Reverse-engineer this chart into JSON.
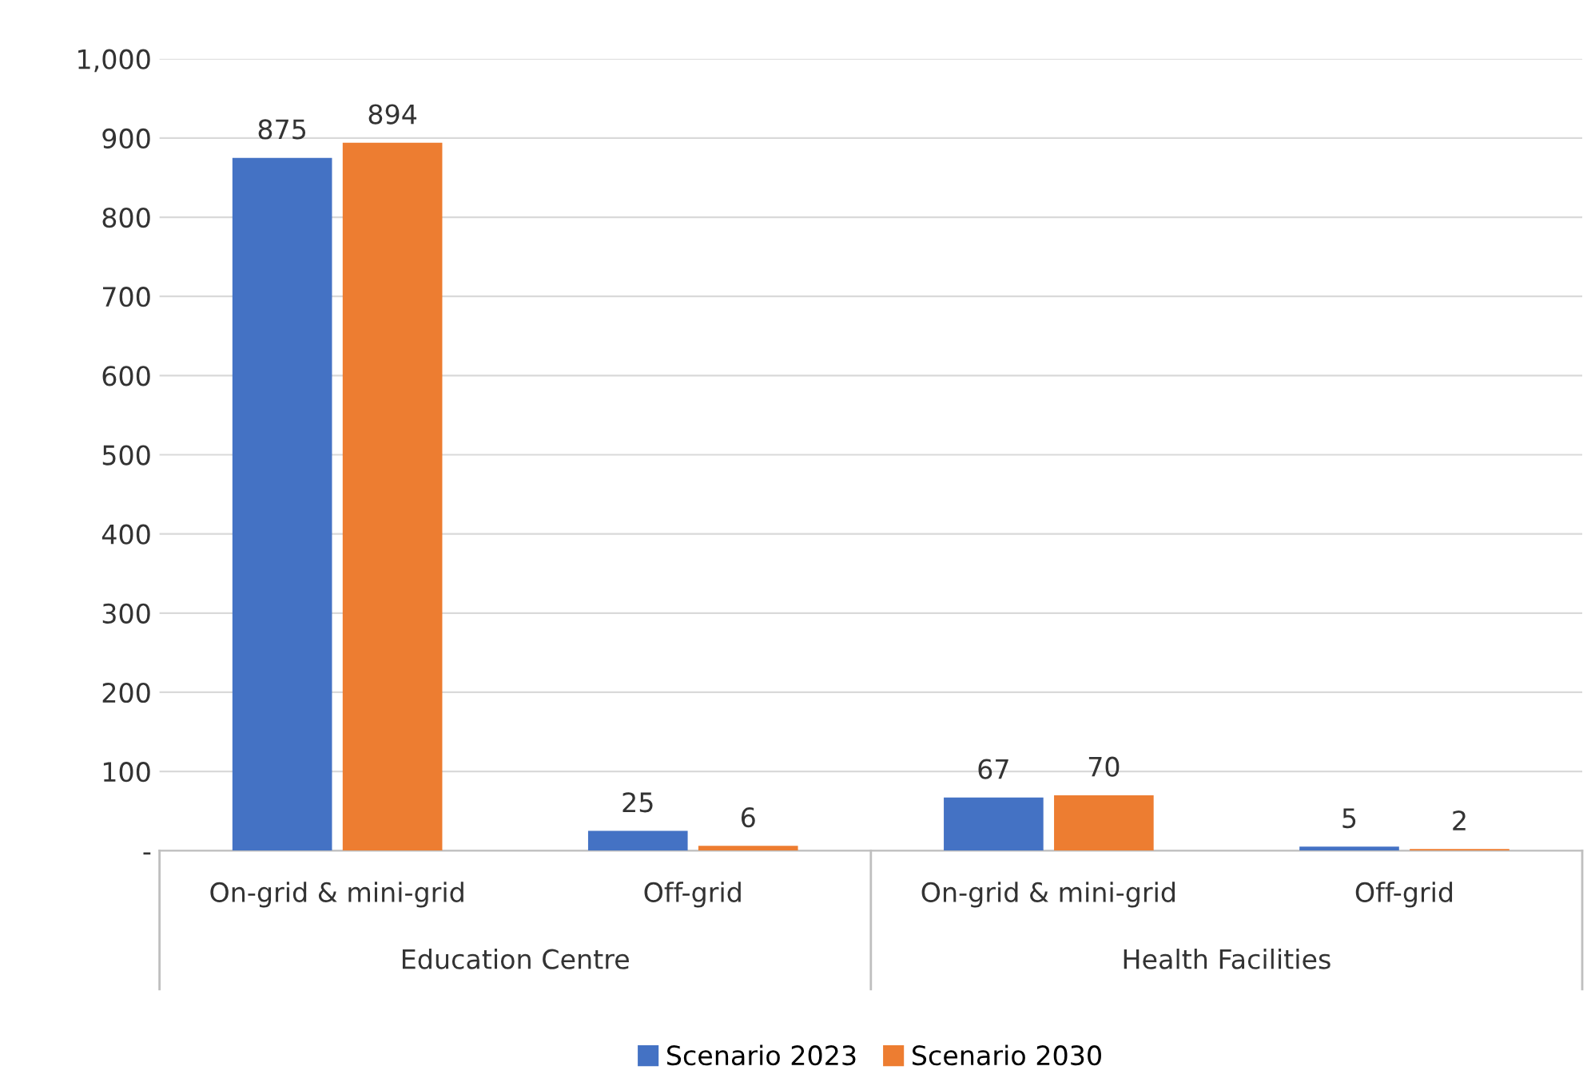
{
  "chart_data": {
    "type": "bar",
    "categories": [
      "On-grid & mini-grid",
      "Off-grid",
      "On-grid & mini-grid",
      "Off-grid"
    ],
    "annotations": [
      "Education Centre",
      "Health Facilities"
    ],
    "series": [
      {
        "name": "Scenario 2023",
        "color": "#4472c4",
        "values": [
          875,
          25,
          67,
          5
        ]
      },
      {
        "name": "Scenario 2030",
        "color": "#ed7d31",
        "values": [
          894,
          6,
          70,
          2
        ]
      }
    ],
    "ylim": [
      0,
      1000
    ],
    "yticks": [
      {
        "value": 0,
        "label": "-"
      },
      100,
      200,
      300,
      400,
      500,
      600,
      700,
      800,
      900,
      {
        "value": 1000,
        "label": "1,000"
      }
    ],
    "grid": "y",
    "data_labels": true,
    "legend": "bottom"
  }
}
